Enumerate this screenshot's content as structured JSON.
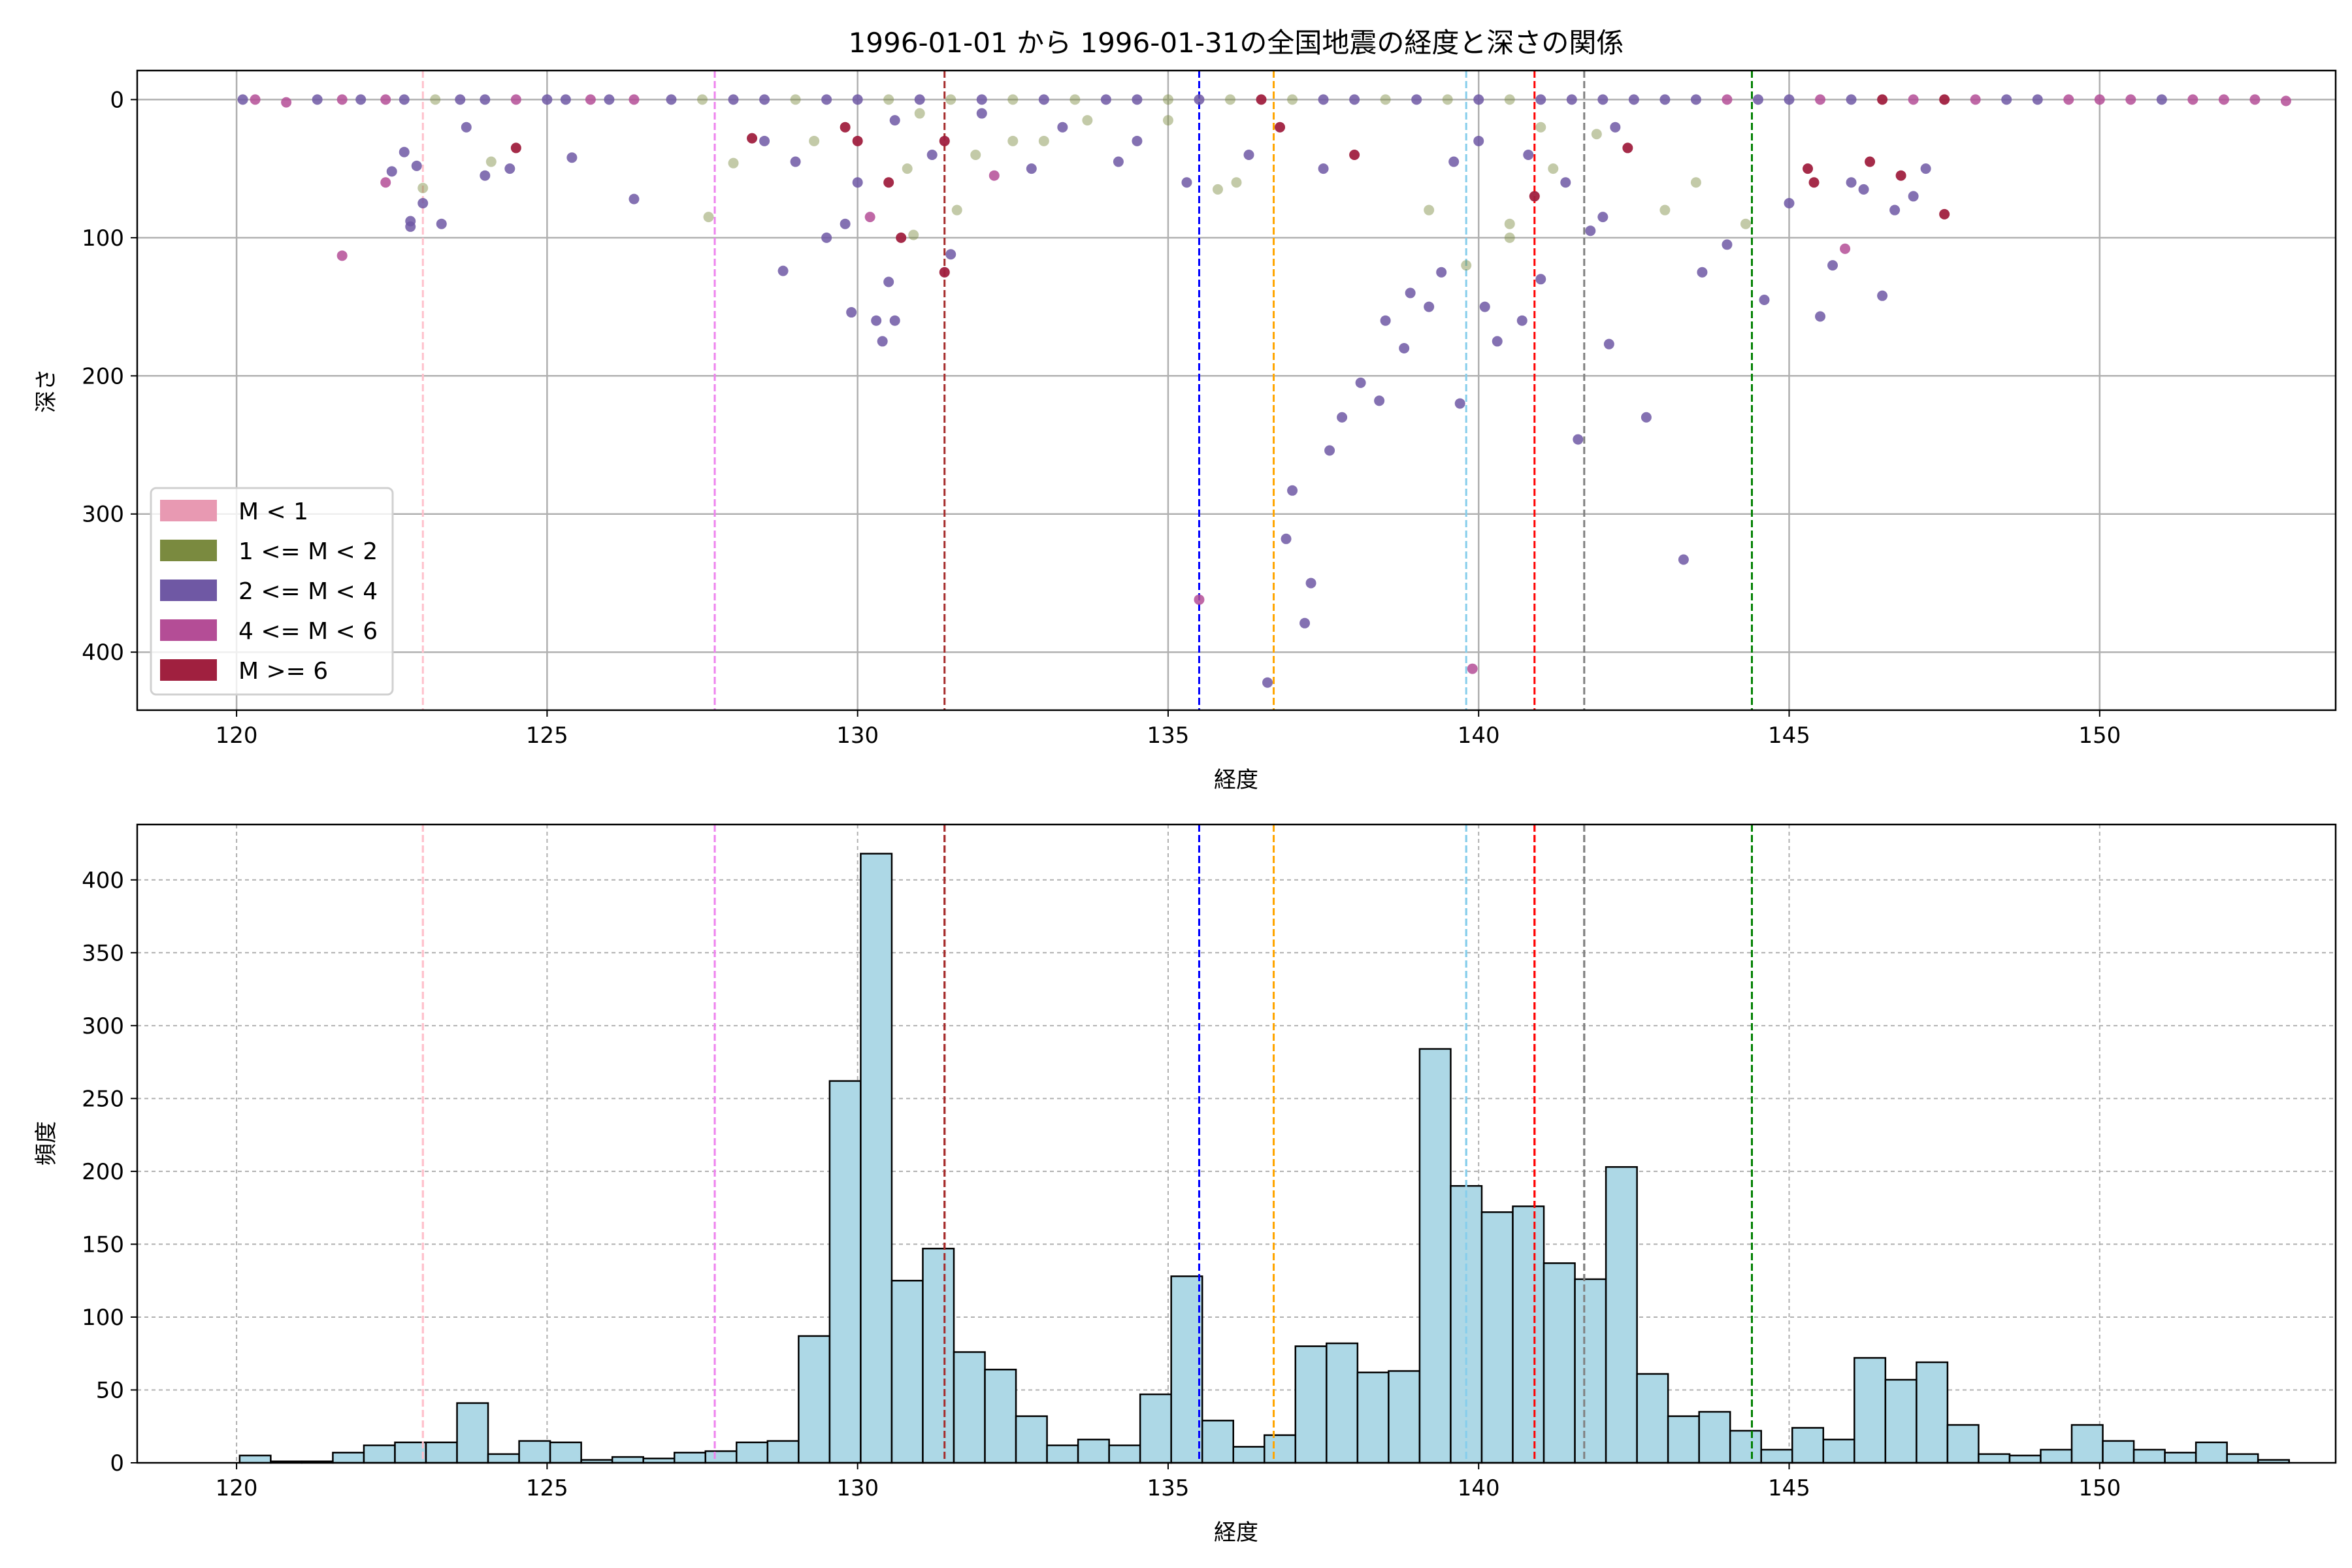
{
  "chart_data": [
    {
      "type": "scatter",
      "title": "1996-01-01 から 1996-01-31の全国地震の経度と深さの関係",
      "xlabel": "経度",
      "ylabel": "深さ",
      "xlim": [
        118.4,
        153.8
      ],
      "ylim": [
        442,
        -21
      ],
      "y_inverted": true,
      "grid": true,
      "xticks": [
        120,
        125,
        130,
        135,
        140,
        145,
        150
      ],
      "yticks": [
        0,
        100,
        200,
        300,
        400
      ],
      "legend_position": "lower-left",
      "legend": [
        {
          "label": "M < 1",
          "color": "#e899b2"
        },
        {
          "label": "1 <= M < 2",
          "color": "#7a8a3f"
        },
        {
          "label": "2 <= M < 4",
          "color": "#6f58a4"
        },
        {
          "label": "4 <= M < 6",
          "color": "#b44d96"
        },
        {
          "label": "M >= 6",
          "color": "#a0203f"
        }
      ],
      "vlines": [
        {
          "x": 123.0,
          "color": "#ffc0cb"
        },
        {
          "x": 127.7,
          "color": "#ee82ee"
        },
        {
          "x": 131.4,
          "color": "#a52a2a"
        },
        {
          "x": 135.5,
          "color": "#0000ff"
        },
        {
          "x": 136.7,
          "color": "#ffa500"
        },
        {
          "x": 139.8,
          "color": "#87ceeb"
        },
        {
          "x": 140.9,
          "color": "#ff0000"
        },
        {
          "x": 141.7,
          "color": "#808080"
        },
        {
          "x": 144.4,
          "color": "#008000"
        }
      ],
      "points_note_fields": [
        "longitude",
        "depth",
        "magnitude_class_index"
      ],
      "points": [
        [
          120.1,
          0,
          2
        ],
        [
          120.3,
          0,
          3
        ],
        [
          120.8,
          2,
          3
        ],
        [
          121.3,
          0,
          2
        ],
        [
          121.7,
          0,
          3
        ],
        [
          122.0,
          0,
          2
        ],
        [
          122.4,
          0,
          3
        ],
        [
          122.7,
          0,
          2
        ],
        [
          123.2,
          0,
          1
        ],
        [
          123.6,
          0,
          2
        ],
        [
          124.0,
          0,
          2
        ],
        [
          124.5,
          0,
          3
        ],
        [
          125.0,
          0,
          2
        ],
        [
          125.3,
          0,
          2
        ],
        [
          125.7,
          0,
          3
        ],
        [
          126.0,
          0,
          2
        ],
        [
          126.4,
          0,
          3
        ],
        [
          127.0,
          0,
          2
        ],
        [
          127.5,
          0,
          1
        ],
        [
          128.0,
          0,
          2
        ],
        [
          128.5,
          0,
          2
        ],
        [
          129.0,
          0,
          1
        ],
        [
          129.5,
          0,
          2
        ],
        [
          130.0,
          0,
          2
        ],
        [
          130.5,
          0,
          1
        ],
        [
          131.0,
          0,
          2
        ],
        [
          131.5,
          0,
          1
        ],
        [
          132.0,
          0,
          2
        ],
        [
          132.5,
          0,
          1
        ],
        [
          133.0,
          0,
          2
        ],
        [
          133.5,
          0,
          1
        ],
        [
          134.0,
          0,
          2
        ],
        [
          134.5,
          0,
          2
        ],
        [
          135.0,
          0,
          1
        ],
        [
          135.5,
          0,
          2
        ],
        [
          136.0,
          0,
          1
        ],
        [
          136.5,
          0,
          4
        ],
        [
          137.0,
          0,
          1
        ],
        [
          137.5,
          0,
          2
        ],
        [
          138.0,
          0,
          2
        ],
        [
          138.5,
          0,
          1
        ],
        [
          139.0,
          0,
          2
        ],
        [
          139.5,
          0,
          1
        ],
        [
          140.0,
          0,
          2
        ],
        [
          140.5,
          0,
          1
        ],
        [
          141.0,
          0,
          2
        ],
        [
          141.5,
          0,
          2
        ],
        [
          142.0,
          0,
          2
        ],
        [
          142.5,
          0,
          2
        ],
        [
          143.0,
          0,
          2
        ],
        [
          143.5,
          0,
          2
        ],
        [
          144.0,
          0,
          3
        ],
        [
          144.5,
          0,
          2
        ],
        [
          145.0,
          0,
          2
        ],
        [
          145.5,
          0,
          3
        ],
        [
          146.0,
          0,
          2
        ],
        [
          146.5,
          0,
          4
        ],
        [
          147.0,
          0,
          3
        ],
        [
          147.5,
          0,
          4
        ],
        [
          148.0,
          0,
          3
        ],
        [
          148.5,
          0,
          2
        ],
        [
          149.0,
          0,
          2
        ],
        [
          149.5,
          0,
          3
        ],
        [
          150.0,
          0,
          3
        ],
        [
          150.5,
          0,
          3
        ],
        [
          151.0,
          0,
          2
        ],
        [
          151.5,
          0,
          3
        ],
        [
          152.0,
          0,
          3
        ],
        [
          152.5,
          0,
          3
        ],
        [
          153.0,
          1,
          3
        ],
        [
          122.5,
          52,
          2
        ],
        [
          122.7,
          38,
          2
        ],
        [
          122.9,
          48,
          2
        ],
        [
          123.0,
          75,
          2
        ],
        [
          122.8,
          88,
          2
        ],
        [
          122.8,
          92,
          2
        ],
        [
          122.4,
          60,
          3
        ],
        [
          123.0,
          64,
          1
        ],
        [
          123.3,
          90,
          2
        ],
        [
          121.7,
          113,
          3
        ],
        [
          123.7,
          20,
          2
        ],
        [
          124.0,
          55,
          2
        ],
        [
          124.1,
          45,
          1
        ],
        [
          124.4,
          50,
          2
        ],
        [
          124.5,
          35,
          4
        ],
        [
          125.4,
          42,
          2
        ],
        [
          126.4,
          72,
          2
        ],
        [
          127.6,
          85,
          1
        ],
        [
          128.0,
          46,
          1
        ],
        [
          128.5,
          30,
          2
        ],
        [
          128.8,
          124,
          2
        ],
        [
          128.3,
          28,
          4
        ],
        [
          129.0,
          45,
          2
        ],
        [
          129.3,
          30,
          1
        ],
        [
          129.5,
          100,
          2
        ],
        [
          129.8,
          90,
          2
        ],
        [
          129.9,
          154,
          2
        ],
        [
          130.0,
          60,
          2
        ],
        [
          130.2,
          85,
          3
        ],
        [
          130.3,
          160,
          2
        ],
        [
          130.4,
          175,
          2
        ],
        [
          130.5,
          132,
          2
        ],
        [
          130.6,
          160,
          2
        ],
        [
          130.5,
          60,
          4
        ],
        [
          130.7,
          100,
          4
        ],
        [
          130.8,
          50,
          1
        ],
        [
          130.9,
          98,
          1
        ],
        [
          131.2,
          40,
          2
        ],
        [
          131.4,
          30,
          4
        ],
        [
          131.4,
          125,
          4
        ],
        [
          131.5,
          112,
          2
        ],
        [
          131.6,
          80,
          1
        ],
        [
          131.9,
          40,
          1
        ],
        [
          132.2,
          55,
          3
        ],
        [
          132.5,
          30,
          1
        ],
        [
          132.8,
          50,
          2
        ],
        [
          133.0,
          30,
          1
        ],
        [
          133.3,
          20,
          2
        ],
        [
          133.7,
          15,
          1
        ],
        [
          134.2,
          45,
          2
        ],
        [
          134.5,
          30,
          2
        ],
        [
          135.0,
          15,
          1
        ],
        [
          135.3,
          60,
          2
        ],
        [
          135.5,
          362,
          3
        ],
        [
          135.8,
          65,
          1
        ],
        [
          136.1,
          60,
          1
        ],
        [
          136.3,
          40,
          2
        ],
        [
          136.6,
          422,
          2
        ],
        [
          136.8,
          20,
          4
        ],
        [
          137.0,
          283,
          2
        ],
        [
          136.9,
          318,
          2
        ],
        [
          137.3,
          350,
          2
        ],
        [
          137.2,
          379,
          2
        ],
        [
          137.6,
          254,
          2
        ],
        [
          137.8,
          230,
          2
        ],
        [
          138.1,
          205,
          2
        ],
        [
          138.4,
          218,
          2
        ],
        [
          138.5,
          160,
          2
        ],
        [
          138.8,
          180,
          2
        ],
        [
          138.9,
          140,
          2
        ],
        [
          139.2,
          150,
          2
        ],
        [
          139.4,
          125,
          2
        ],
        [
          139.7,
          220,
          2
        ],
        [
          139.8,
          120,
          1
        ],
        [
          139.9,
          412,
          3
        ],
        [
          140.1,
          150,
          2
        ],
        [
          140.3,
          175,
          2
        ],
        [
          140.5,
          100,
          1
        ],
        [
          140.7,
          160,
          2
        ],
        [
          140.5,
          90,
          1
        ],
        [
          140.9,
          70,
          4
        ],
        [
          141.0,
          130,
          2
        ],
        [
          141.2,
          50,
          1
        ],
        [
          141.6,
          246,
          2
        ],
        [
          141.8,
          95,
          2
        ],
        [
          142.1,
          177,
          2
        ],
        [
          142.4,
          35,
          4
        ],
        [
          142.7,
          230,
          2
        ],
        [
          143.3,
          333,
          2
        ],
        [
          143.6,
          125,
          2
        ],
        [
          143.0,
          80,
          1
        ],
        [
          143.5,
          60,
          1
        ],
        [
          144.0,
          105,
          2
        ],
        [
          144.3,
          90,
          1
        ],
        [
          144.6,
          145,
          2
        ],
        [
          145.0,
          75,
          2
        ],
        [
          145.3,
          50,
          4
        ],
        [
          145.5,
          157,
          2
        ],
        [
          145.7,
          120,
          2
        ],
        [
          145.9,
          108,
          3
        ],
        [
          146.0,
          60,
          2
        ],
        [
          146.3,
          45,
          4
        ],
        [
          146.5,
          142,
          2
        ],
        [
          146.8,
          55,
          4
        ],
        [
          147.0,
          70,
          2
        ],
        [
          147.5,
          83,
          4
        ],
        [
          139.2,
          80,
          1
        ],
        [
          139.6,
          45,
          2
        ],
        [
          140.0,
          30,
          2
        ],
        [
          140.8,
          40,
          2
        ],
        [
          141.4,
          60,
          2
        ],
        [
          141.9,
          25,
          1
        ],
        [
          142.0,
          85,
          2
        ],
        [
          130.0,
          30,
          4
        ],
        [
          129.8,
          20,
          4
        ],
        [
          130.6,
          15,
          2
        ],
        [
          131.0,
          10,
          1
        ],
        [
          132.0,
          10,
          2
        ],
        [
          138.0,
          40,
          4
        ],
        [
          137.5,
          50,
          2
        ],
        [
          142.2,
          20,
          2
        ],
        [
          141.0,
          20,
          1
        ],
        [
          146.2,
          65,
          2
        ],
        [
          146.7,
          80,
          2
        ],
        [
          145.4,
          60,
          4
        ],
        [
          147.2,
          50,
          2
        ]
      ]
    },
    {
      "type": "bar",
      "subtype": "histogram",
      "xlabel": "経度",
      "ylabel": "頻度",
      "xlim": [
        118.4,
        153.8
      ],
      "ylim": [
        0,
        438
      ],
      "grid": true,
      "xticks": [
        120,
        125,
        130,
        135,
        140,
        145,
        150
      ],
      "yticks": [
        0,
        50,
        100,
        150,
        200,
        250,
        300,
        350,
        400
      ],
      "bin_start": 120.05,
      "bin_width": 0.5,
      "bar_color": "#add8e6",
      "edge_color": "#000000",
      "values": [
        5,
        1,
        1,
        7,
        12,
        14,
        14,
        41,
        6,
        15,
        14,
        2,
        4,
        3,
        7,
        8,
        14,
        15,
        87,
        262,
        418,
        125,
        147,
        76,
        64,
        32,
        12,
        16,
        12,
        47,
        128,
        29,
        11,
        19,
        80,
        82,
        62,
        63,
        284,
        190,
        172,
        176,
        137,
        126,
        203,
        61,
        32,
        35,
        22,
        9,
        24,
        16,
        72,
        57,
        69,
        26,
        6,
        5,
        9,
        26,
        15,
        9,
        7,
        14,
        6,
        2
      ],
      "vlines_same_as_top": true
    }
  ]
}
